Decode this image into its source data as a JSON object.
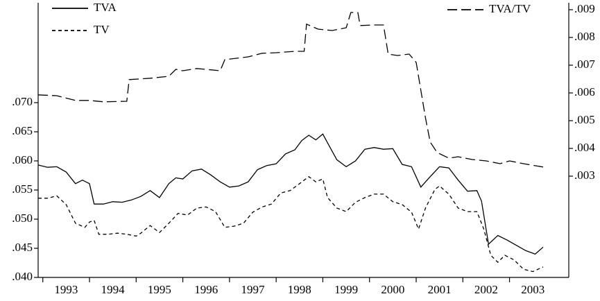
{
  "chart_data": {
    "type": "line",
    "xlim": [
      1992.9,
      2004.27
    ],
    "xticks": [
      1993,
      1994,
      1995,
      1996,
      1997,
      1998,
      1999,
      2000,
      2001,
      2002,
      2003
    ],
    "ylim": [
      0.04,
      0.08714
    ],
    "yticks": [
      {
        "value": 0.04,
        "label": ".040"
      },
      {
        "value": 0.045,
        "label": ".045"
      },
      {
        "value": 0.05,
        "label": ".050"
      },
      {
        "value": 0.055,
        "label": ".055"
      },
      {
        "value": 0.06,
        "label": ".060"
      },
      {
        "value": 0.065,
        "label": ".065"
      },
      {
        "value": 0.07,
        "label": ".070"
      }
    ],
    "y2lim": [
      -0.00065,
      0.00925
    ],
    "y2ticks": [
      {
        "value": 0.003,
        "label": ".003"
      },
      {
        "value": 0.004,
        "label": ".004"
      },
      {
        "value": 0.005,
        "label": ".005"
      },
      {
        "value": 0.006,
        "label": ".006"
      },
      {
        "value": 0.007,
        "label": ".007"
      },
      {
        "value": 0.008,
        "label": ".008"
      },
      {
        "value": 0.009,
        "label": ".009"
      }
    ],
    "series": [
      {
        "name": "TVA",
        "color": "#000000",
        "dash": "none",
        "x": [
          1992.9,
          1993.1,
          1993.3,
          1993.5,
          1993.7,
          1993.85,
          1994.0,
          1994.1,
          1994.3,
          1994.5,
          1994.7,
          1994.9,
          1995.1,
          1995.3,
          1995.5,
          1995.7,
          1995.85,
          1996.0,
          1996.2,
          1996.4,
          1996.6,
          1996.8,
          1997.0,
          1997.2,
          1997.4,
          1997.6,
          1997.8,
          1998.0,
          1998.2,
          1998.4,
          1998.55,
          1998.7,
          1998.85,
          1999.0,
          1999.1,
          1999.3,
          1999.5,
          1999.7,
          1999.9,
          2000.1,
          2000.3,
          2000.5,
          2000.7,
          2000.9,
          2001.1,
          2001.3,
          2001.5,
          2001.7,
          2001.9,
          2002.1,
          2002.3,
          2002.4,
          2002.55,
          2002.75,
          2002.95,
          2003.15,
          2003.35,
          2003.55,
          2003.72
        ],
        "values": [
          0.0593,
          0.0589,
          0.059,
          0.0581,
          0.0561,
          0.0567,
          0.0561,
          0.0526,
          0.0526,
          0.053,
          0.0529,
          0.0533,
          0.0539,
          0.0549,
          0.0537,
          0.0561,
          0.0571,
          0.0569,
          0.0583,
          0.0586,
          0.0576,
          0.0564,
          0.0555,
          0.0557,
          0.0564,
          0.0585,
          0.0592,
          0.0595,
          0.0612,
          0.0619,
          0.0635,
          0.0644,
          0.0636,
          0.0646,
          0.0631,
          0.0602,
          0.059,
          0.06,
          0.062,
          0.0623,
          0.062,
          0.0621,
          0.0594,
          0.059,
          0.0555,
          0.0573,
          0.059,
          0.0588,
          0.0567,
          0.0548,
          0.0549,
          0.0531,
          0.0457,
          0.0472,
          0.0464,
          0.0455,
          0.0446,
          0.044,
          0.0452
        ]
      },
      {
        "name": "TV",
        "color": "#000000",
        "dash": "5,4",
        "x": [
          1992.9,
          1993.1,
          1993.3,
          1993.5,
          1993.7,
          1993.9,
          1994.0,
          1994.1,
          1994.2,
          1994.4,
          1994.6,
          1994.8,
          1995.0,
          1995.1,
          1995.3,
          1995.5,
          1995.7,
          1995.9,
          1996.1,
          1996.3,
          1996.5,
          1996.7,
          1996.9,
          1997.1,
          1997.3,
          1997.5,
          1997.7,
          1997.9,
          1998.1,
          1998.3,
          1998.5,
          1998.7,
          1998.85,
          1999.0,
          1999.1,
          1999.3,
          1999.5,
          1999.7,
          1999.9,
          2000.1,
          2000.3,
          2000.5,
          2000.7,
          2000.9,
          2001.05,
          2001.2,
          2001.4,
          2001.5,
          2001.7,
          2001.9,
          2002.1,
          2002.3,
          2002.45,
          2002.6,
          2002.75,
          2002.9,
          2003.1,
          2003.3,
          2003.5,
          2003.72
        ],
        "values": [
          0.0536,
          0.0536,
          0.054,
          0.0525,
          0.0493,
          0.0486,
          0.0495,
          0.0498,
          0.0474,
          0.0474,
          0.0476,
          0.0474,
          0.0471,
          0.0476,
          0.0489,
          0.0477,
          0.0493,
          0.051,
          0.0507,
          0.0519,
          0.0521,
          0.0513,
          0.0486,
          0.0488,
          0.0493,
          0.0512,
          0.0521,
          0.0526,
          0.0545,
          0.0549,
          0.0561,
          0.0573,
          0.0564,
          0.0569,
          0.0537,
          0.0519,
          0.0513,
          0.0529,
          0.0537,
          0.0543,
          0.0543,
          0.053,
          0.0525,
          0.0512,
          0.0483,
          0.0519,
          0.0551,
          0.0557,
          0.0543,
          0.0519,
          0.0513,
          0.0513,
          0.0483,
          0.0438,
          0.0426,
          0.0438,
          0.043,
          0.0414,
          0.041,
          0.0418
        ]
      },
      {
        "name": "TVA/TV",
        "color": "#000000",
        "dash": "14,6",
        "axis": "y2",
        "x": [
          1992.9,
          1993.3,
          1993.7,
          1994.0,
          1994.3,
          1994.8,
          1994.85,
          1995.3,
          1995.7,
          1995.85,
          1996.0,
          1996.3,
          1996.8,
          1996.9,
          1997.4,
          1997.7,
          1998.0,
          1998.4,
          1998.6,
          1998.65,
          1998.9,
          1999.2,
          1999.5,
          1999.6,
          1999.75,
          1999.8,
          2000.1,
          2000.3,
          2000.4,
          2000.6,
          2000.85,
          2001.0,
          2001.1,
          2001.2,
          2001.3,
          2001.45,
          2001.7,
          2001.9,
          2002.2,
          2002.5,
          2002.8,
          2003.0,
          2003.3,
          2003.72
        ],
        "values": [
          0.00593,
          0.0059,
          0.00573,
          0.00573,
          0.00568,
          0.0057,
          0.00648,
          0.00653,
          0.0066,
          0.00685,
          0.0068,
          0.00688,
          0.0068,
          0.0072,
          0.0073,
          0.00743,
          0.00745,
          0.0075,
          0.0075,
          0.00848,
          0.0083,
          0.00825,
          0.00835,
          0.0089,
          0.0089,
          0.00843,
          0.00845,
          0.00845,
          0.0074,
          0.00735,
          0.0074,
          0.0071,
          0.0061,
          0.0051,
          0.00423,
          0.00385,
          0.00365,
          0.0037,
          0.0036,
          0.00355,
          0.00345,
          0.00355,
          0.00345,
          0.00333
        ]
      }
    ]
  }
}
